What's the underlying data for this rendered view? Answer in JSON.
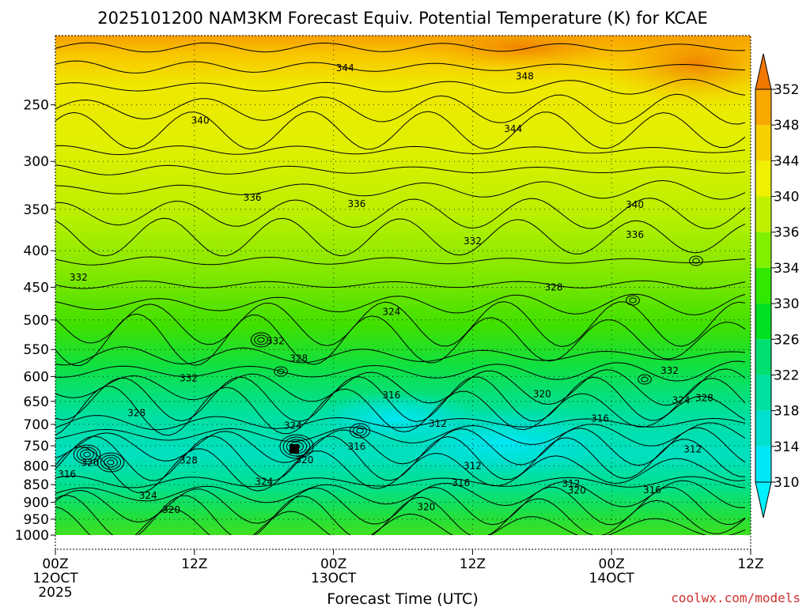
{
  "chart_data": {
    "type": "heatmap",
    "title": "2025101200 NAM3KM Forecast Equiv. Potential Temperature (K) for KCAE",
    "xlabel": "Forecast Time (UTC)",
    "ylabel": "",
    "x_ticks": [
      {
        "hour": 0,
        "line1": "00Z",
        "line2": "12OCT",
        "line3": "2025"
      },
      {
        "hour": 12,
        "line1": "12Z",
        "line2": "",
        "line3": ""
      },
      {
        "hour": 24,
        "line1": "00Z",
        "line2": "13OCT",
        "line3": ""
      },
      {
        "hour": 36,
        "line1": "12Z",
        "line2": "",
        "line3": ""
      },
      {
        "hour": 48,
        "line1": "00Z",
        "line2": "14OCT",
        "line3": ""
      },
      {
        "hour": 60,
        "line1": "12Z",
        "line2": "",
        "line3": ""
      }
    ],
    "xlim": [
      0,
      60
    ],
    "y_ticks": [
      250,
      300,
      350,
      400,
      450,
      500,
      550,
      600,
      650,
      700,
      750,
      800,
      850,
      900,
      950,
      1000
    ],
    "ylim": [
      1000,
      200
    ],
    "y_scale": "log-pressure",
    "units": "K",
    "colorbar": {
      "levels": [
        310,
        314,
        318,
        322,
        326,
        330,
        334,
        336,
        340,
        344,
        348,
        352
      ],
      "colors": [
        "#00e8f8",
        "#00e0d0",
        "#00e0a0",
        "#00e070",
        "#00e020",
        "#30e800",
        "#80f000",
        "#c0f000",
        "#f0f000",
        "#f8d000",
        "#f8a800",
        "#f08000"
      ],
      "extend": "both",
      "min_color": "#00f0ff",
      "max_color": "#f07800"
    },
    "ground_color": "#a0522d",
    "contour_labels": [
      {
        "hour": 25.0,
        "p": 222,
        "v": "344"
      },
      {
        "hour": 40.5,
        "p": 228,
        "v": "348"
      },
      {
        "hour": 12.5,
        "p": 263,
        "v": "340"
      },
      {
        "hour": 39.5,
        "p": 270,
        "v": "344"
      },
      {
        "hour": 17.0,
        "p": 337,
        "v": "336"
      },
      {
        "hour": 26.0,
        "p": 344,
        "v": "336"
      },
      {
        "hour": 50.0,
        "p": 345,
        "v": "340"
      },
      {
        "hour": 36.0,
        "p": 388,
        "v": "332"
      },
      {
        "hour": 50.0,
        "p": 380,
        "v": "336"
      },
      {
        "hour": 2.0,
        "p": 436,
        "v": "332"
      },
      {
        "hour": 43.0,
        "p": 450,
        "v": "328"
      },
      {
        "hour": 29.0,
        "p": 487,
        "v": "324"
      },
      {
        "hour": 19.0,
        "p": 535,
        "v": "332"
      },
      {
        "hour": 21.0,
        "p": 566,
        "v": "328"
      },
      {
        "hour": 11.5,
        "p": 603,
        "v": "332"
      },
      {
        "hour": 53.0,
        "p": 589,
        "v": "332"
      },
      {
        "hour": 29.0,
        "p": 637,
        "v": "316"
      },
      {
        "hour": 42.0,
        "p": 635,
        "v": "320"
      },
      {
        "hour": 54.0,
        "p": 648,
        "v": "324"
      },
      {
        "hour": 56.0,
        "p": 643,
        "v": "328"
      },
      {
        "hour": 7.0,
        "p": 675,
        "v": "328"
      },
      {
        "hour": 47.0,
        "p": 687,
        "v": "316"
      },
      {
        "hour": 33.0,
        "p": 698,
        "v": "312"
      },
      {
        "hour": 20.5,
        "p": 703,
        "v": "324"
      },
      {
        "hour": 26.0,
        "p": 752,
        "v": "316"
      },
      {
        "hour": 55.0,
        "p": 759,
        "v": "312"
      },
      {
        "hour": 11.5,
        "p": 786,
        "v": "328"
      },
      {
        "hour": 21.5,
        "p": 785,
        "v": "320"
      },
      {
        "hour": 3.0,
        "p": 792,
        "v": "320"
      },
      {
        "hour": 36.0,
        "p": 800,
        "v": "312"
      },
      {
        "hour": 1.0,
        "p": 822,
        "v": "316"
      },
      {
        "hour": 18.0,
        "p": 842,
        "v": "324"
      },
      {
        "hour": 35.0,
        "p": 845,
        "v": "316"
      },
      {
        "hour": 44.5,
        "p": 847,
        "v": "312"
      },
      {
        "hour": 45.0,
        "p": 866,
        "v": "320"
      },
      {
        "hour": 51.5,
        "p": 865,
        "v": "316"
      },
      {
        "hour": 8.0,
        "p": 880,
        "v": "324"
      },
      {
        "hour": 10.0,
        "p": 922,
        "v": "320"
      },
      {
        "hour": 32.0,
        "p": 913,
        "v": "320"
      }
    ]
  },
  "credit": "coolwx.com/models"
}
